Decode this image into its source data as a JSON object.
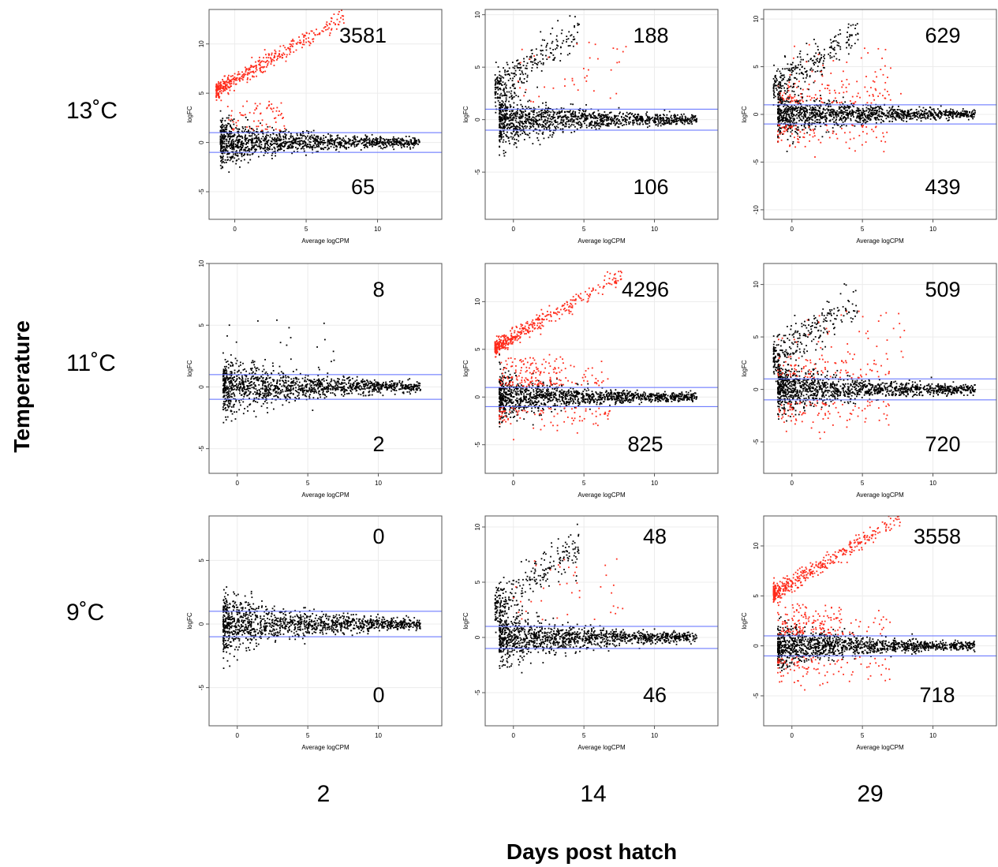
{
  "y_axis_title": "Temperature",
  "x_axis_title": "Days post hatch",
  "row_labels": [
    "13˚C",
    "11˚C",
    "9˚C"
  ],
  "col_labels": [
    "2",
    "14",
    "29"
  ],
  "colors": {
    "up_down_regulated": "#ff2a1a",
    "not_significant": "#000000",
    "threshold_lines": "#5b6bff",
    "outlier": "#ffa500"
  },
  "chart_data": [
    {
      "type": "scatter",
      "row": "13˚C",
      "col": "2",
      "xlabel": "Average logCPM",
      "ylabel": "logFC",
      "xlim": [
        -1.8,
        14.5
      ],
      "ylim": [
        -7.8,
        13.5
      ],
      "xticks": [
        0,
        5,
        10
      ],
      "yticks": [
        -5,
        0,
        5,
        10
      ],
      "thresholds": [
        1,
        -1
      ],
      "up_count": "3581",
      "down_count": "65",
      "pattern": "strong-up"
    },
    {
      "type": "scatter",
      "row": "13˚C",
      "col": "14",
      "xlabel": "Average logCPM",
      "ylabel": "logFC",
      "xlim": [
        -2,
        14.5
      ],
      "ylim": [
        -9.5,
        10.5
      ],
      "xticks": [
        0,
        5,
        10
      ],
      "yticks": [
        -5,
        0,
        5,
        10
      ],
      "thresholds": [
        1,
        -1
      ],
      "up_count": "188",
      "down_count": "106",
      "pattern": "mixed-black-arm"
    },
    {
      "type": "scatter",
      "row": "13˚C",
      "col": "29",
      "xlabel": "Average logCPM",
      "ylabel": "logFC",
      "xlim": [
        -2,
        14.5
      ],
      "ylim": [
        -11,
        11
      ],
      "xticks": [
        0,
        5,
        10
      ],
      "yticks": [
        -10,
        -5,
        0,
        5,
        10
      ],
      "thresholds": [
        1,
        -1
      ],
      "up_count": "629",
      "down_count": "439",
      "pattern": "mixed-red-scatter"
    },
    {
      "type": "scatter",
      "row": "11˚C",
      "col": "2",
      "xlabel": "Average logCPM",
      "ylabel": "logFC",
      "xlim": [
        -2,
        14.5
      ],
      "ylim": [
        -7,
        10
      ],
      "xticks": [
        0,
        5,
        10
      ],
      "yticks": [
        -5,
        0,
        5,
        10
      ],
      "thresholds": [
        1,
        -1
      ],
      "up_count": "8",
      "down_count": "2",
      "pattern": "mostly-black"
    },
    {
      "type": "scatter",
      "row": "11˚C",
      "col": "14",
      "xlabel": "Average logCPM",
      "ylabel": "logFC",
      "xlim": [
        -2,
        14.5
      ],
      "ylim": [
        -8,
        14
      ],
      "xticks": [
        0,
        5,
        10
      ],
      "yticks": [
        -5,
        0,
        5,
        10
      ],
      "thresholds": [
        1,
        -1
      ],
      "up_count": "4296",
      "down_count": "825",
      "pattern": "strong-up-with-down"
    },
    {
      "type": "scatter",
      "row": "11˚C",
      "col": "29",
      "xlabel": "Average logCPM",
      "ylabel": "logFC",
      "xlim": [
        -2,
        14.5
      ],
      "ylim": [
        -8,
        12
      ],
      "xticks": [
        0,
        5,
        10
      ],
      "yticks": [
        -5,
        0,
        5,
        10
      ],
      "thresholds": [
        1,
        -1
      ],
      "up_count": "509",
      "down_count": "720",
      "pattern": "mixed-red-scatter"
    },
    {
      "type": "scatter",
      "row": "9˚C",
      "col": "2",
      "xlabel": "Average logCPM",
      "ylabel": "logFC",
      "xlim": [
        -2,
        14.5
      ],
      "ylim": [
        -8,
        8.5
      ],
      "xticks": [
        0,
        5,
        10
      ],
      "yticks": [
        -5,
        0,
        5
      ],
      "thresholds": [
        1,
        -1
      ],
      "up_count": "0",
      "down_count": "0",
      "pattern": "all-black"
    },
    {
      "type": "scatter",
      "row": "9˚C",
      "col": "14",
      "xlabel": "Average logCPM",
      "ylabel": "logFC",
      "xlim": [
        -2,
        14.5
      ],
      "ylim": [
        -8,
        11
      ],
      "xticks": [
        0,
        5,
        10
      ],
      "yticks": [
        -5,
        0,
        5,
        10
      ],
      "thresholds": [
        1,
        -1
      ],
      "up_count": "48",
      "down_count": "46",
      "pattern": "mixed-black-arm"
    },
    {
      "type": "scatter",
      "row": "9˚C",
      "col": "29",
      "xlabel": "Average logCPM",
      "ylabel": "logFC",
      "xlim": [
        -2,
        14.5
      ],
      "ylim": [
        -8,
        13
      ],
      "xticks": [
        0,
        5,
        10
      ],
      "yticks": [
        -5,
        0,
        5,
        10
      ],
      "thresholds": [
        1,
        -1
      ],
      "up_count": "3558",
      "down_count": "718",
      "pattern": "strong-up-with-down"
    }
  ]
}
